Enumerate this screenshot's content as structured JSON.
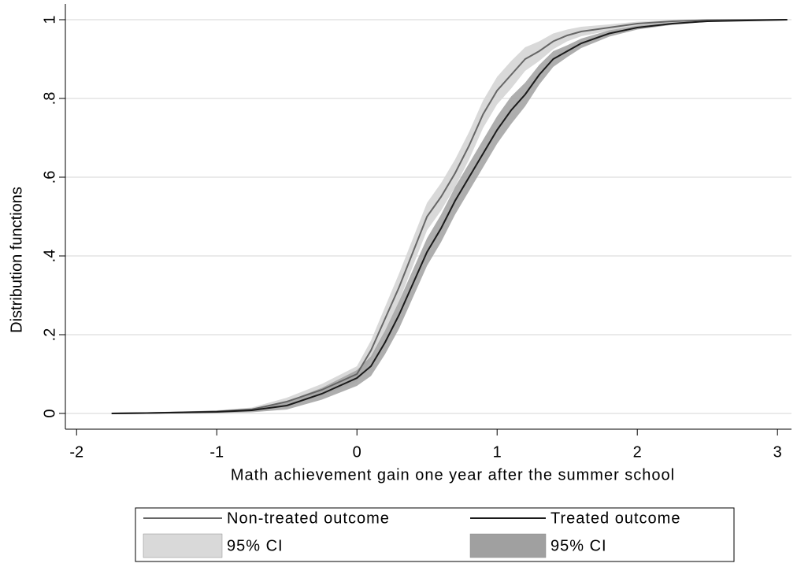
{
  "chart_data": {
    "type": "line",
    "x_label": "Math achievement gain one year after the summer school",
    "y_label": "Distribution functions",
    "x": [
      -1.75,
      -1.5,
      -1,
      -0.75,
      -0.5,
      -0.25,
      0,
      0.1,
      0.2,
      0.3,
      0.4,
      0.5,
      0.6,
      0.7,
      0.8,
      0.9,
      1,
      1.1,
      1.2,
      1.3,
      1.4,
      1.5,
      1.6,
      1.8,
      2,
      2.25,
      2.5,
      3.07
    ],
    "series": [
      {
        "name": "Non-treated outcome",
        "color": "#666666",
        "values": [
          0,
          0.001,
          0.005,
          0.01,
          0.03,
          0.06,
          0.1,
          0.16,
          0.24,
          0.32,
          0.41,
          0.5,
          0.55,
          0.61,
          0.68,
          0.76,
          0.82,
          0.86,
          0.9,
          0.92,
          0.945,
          0.96,
          0.97,
          0.98,
          0.99,
          0.996,
          0.999,
          1
        ]
      },
      {
        "name": "Treated outcome",
        "color": "#1a1a1a",
        "values": [
          0,
          0.001,
          0.004,
          0.008,
          0.02,
          0.05,
          0.09,
          0.12,
          0.18,
          0.25,
          0.33,
          0.41,
          0.47,
          0.54,
          0.6,
          0.66,
          0.72,
          0.77,
          0.81,
          0.86,
          0.9,
          0.92,
          0.94,
          0.965,
          0.98,
          0.99,
          0.996,
          1
        ]
      }
    ],
    "bands": [
      {
        "name": "95% CI",
        "color": "#d9d9d9",
        "lower": [
          0,
          0,
          0.002,
          0.005,
          0.02,
          0.045,
          0.08,
          0.135,
          0.21,
          0.285,
          0.375,
          0.465,
          0.515,
          0.575,
          0.645,
          0.725,
          0.785,
          0.825,
          0.87,
          0.895,
          0.925,
          0.945,
          0.958,
          0.972,
          0.985,
          0.993,
          0.998,
          1
        ],
        "upper": [
          0,
          0.002,
          0.008,
          0.015,
          0.04,
          0.075,
          0.12,
          0.185,
          0.27,
          0.355,
          0.445,
          0.535,
          0.585,
          0.645,
          0.715,
          0.795,
          0.855,
          0.895,
          0.93,
          0.945,
          0.965,
          0.975,
          0.982,
          0.988,
          0.995,
          0.999,
          1,
          1
        ]
      },
      {
        "name": "95% CI",
        "color": "#a0a0a0",
        "lower": [
          0,
          0,
          0.001,
          0.003,
          0.01,
          0.035,
          0.07,
          0.095,
          0.15,
          0.215,
          0.295,
          0.375,
          0.435,
          0.505,
          0.565,
          0.625,
          0.685,
          0.735,
          0.78,
          0.835,
          0.88,
          0.905,
          0.928,
          0.957,
          0.975,
          0.987,
          0.995,
          1
        ],
        "upper": [
          0,
          0.002,
          0.007,
          0.013,
          0.03,
          0.065,
          0.11,
          0.145,
          0.21,
          0.285,
          0.365,
          0.445,
          0.505,
          0.575,
          0.635,
          0.695,
          0.755,
          0.805,
          0.84,
          0.885,
          0.92,
          0.935,
          0.952,
          0.973,
          0.985,
          0.993,
          0.997,
          1
        ]
      }
    ],
    "xlim": [
      -2.08,
      3.1
    ],
    "ylim": [
      -0.04,
      1.04
    ],
    "xticks": [
      -2,
      -1,
      0,
      1,
      2,
      3
    ],
    "yticks": [
      0,
      {
        "value": 0.2,
        "label": ".2"
      },
      {
        "value": 0.4,
        "label": ".4"
      },
      {
        "value": 0.6,
        "label": ".6"
      },
      {
        "value": 0.8,
        "label": ".8"
      },
      1
    ],
    "grid": true
  }
}
